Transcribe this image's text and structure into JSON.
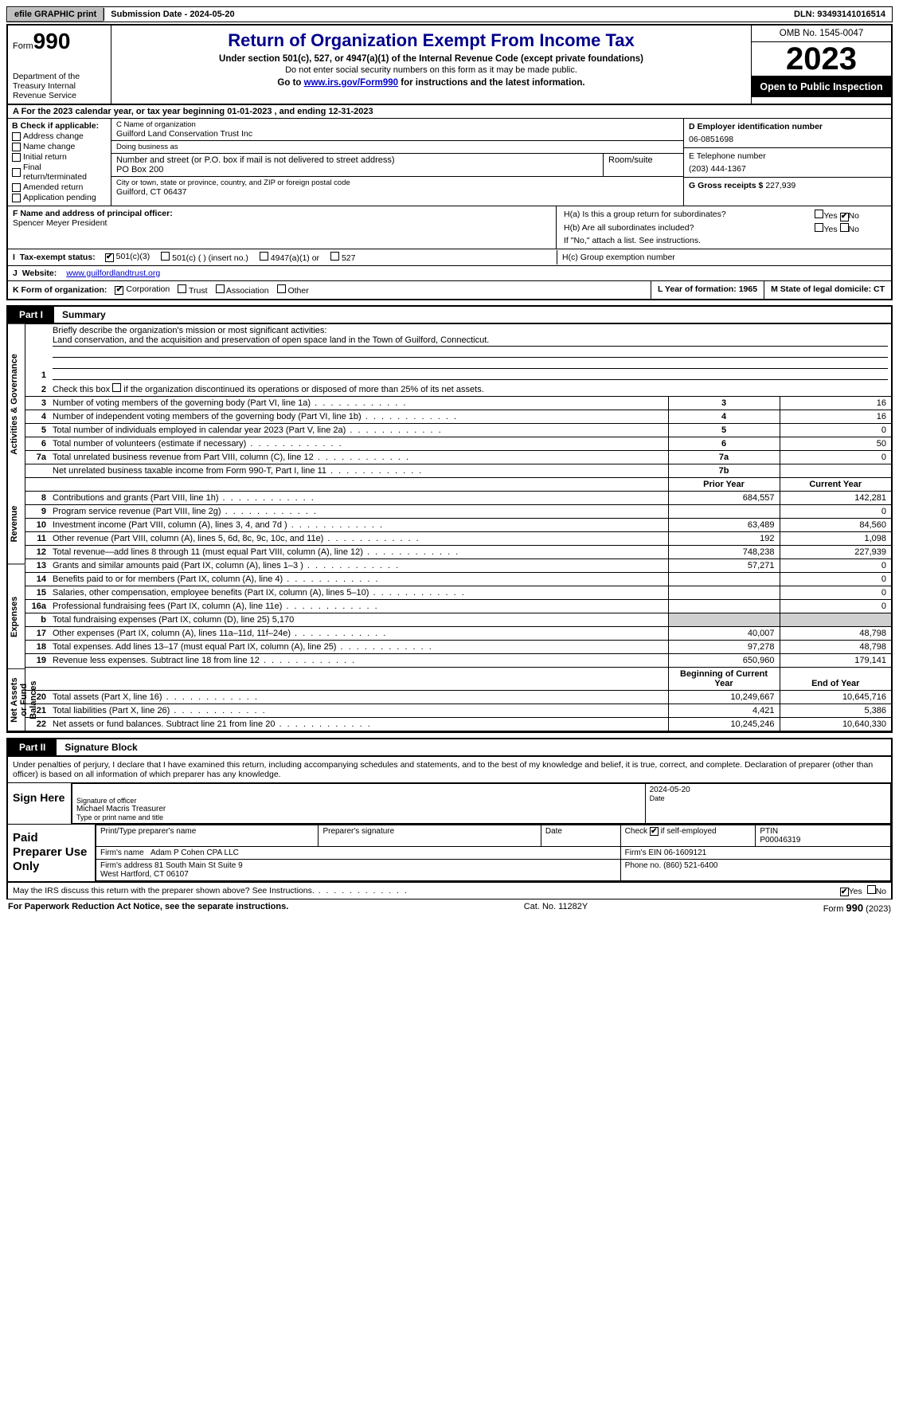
{
  "topbar": {
    "efile_btn": "efile GRAPHIC print",
    "submission": "Submission Date - 2024-05-20",
    "dln": "DLN: 93493141016514"
  },
  "header": {
    "form_word": "Form",
    "form_no": "990",
    "dept": "Department of the Treasury\nInternal Revenue Service",
    "title": "Return of Organization Exempt From Income Tax",
    "sub1": "Under section 501(c), 527, or 4947(a)(1) of the Internal Revenue Code (except private foundations)",
    "sub2": "Do not enter social security numbers on this form as it may be made public.",
    "sub3_pre": "Go to ",
    "sub3_link": "www.irs.gov/Form990",
    "sub3_post": " for instructions and the latest information.",
    "omb": "OMB No. 1545-0047",
    "year": "2023",
    "open": "Open to Public Inspection"
  },
  "aline": "A For the 2023 calendar year, or tax year beginning 01-01-2023    , and ending 12-31-2023",
  "boxB": {
    "label": "B Check if applicable:",
    "items": [
      "Address change",
      "Name change",
      "Initial return",
      "Final return/terminated",
      "Amended return",
      "Application pending"
    ]
  },
  "boxC": {
    "name_lbl": "C Name of organization",
    "name": "Guilford Land Conservation Trust Inc",
    "dba_lbl": "Doing business as",
    "dba": "",
    "street_lbl": "Number and street (or P.O. box if mail is not delivered to street address)",
    "room_lbl": "Room/suite",
    "street": "PO Box 200",
    "city_lbl": "City or town, state or province, country, and ZIP or foreign postal code",
    "city": "Guilford, CT  06437"
  },
  "boxD": {
    "lbl": "D Employer identification number",
    "val": "06-0851698"
  },
  "boxE": {
    "lbl": "E Telephone number",
    "val": "(203) 444-1367"
  },
  "boxG": {
    "lbl": "G Gross receipts $",
    "val": "227,939"
  },
  "boxF": {
    "lbl": "F  Name and address of principal officer:",
    "val": "Spencer Meyer President"
  },
  "boxH": {
    "ha": "H(a)  Is this a group return for subordinates?",
    "hb": "H(b)  Are all subordinates included?",
    "hnote": "If \"No,\" attach a list. See instructions.",
    "hc": "H(c)  Group exemption number"
  },
  "yes": "Yes",
  "no": "No",
  "rowI": {
    "lbl": "I",
    "txt": "Tax-exempt status:",
    "o1": "501(c)(3)",
    "o2": "501(c) (  ) (insert no.)",
    "o3": "4947(a)(1) or",
    "o4": "527"
  },
  "rowJ": {
    "lbl": "J",
    "txt": "Website:",
    "val": "www.guilfordlandtrust.org"
  },
  "rowK": {
    "lbl": "K",
    "txt": "Form of organization:",
    "o1": "Corporation",
    "o2": "Trust",
    "o3": "Association",
    "o4": "Other"
  },
  "rowL": {
    "txt": "L Year of formation: 1965"
  },
  "rowM": {
    "txt": "M State of legal domicile: CT"
  },
  "part1": {
    "tag": "Part I",
    "title": "Summary",
    "vlabels": [
      "Activities & Governance",
      "Revenue",
      "Expenses",
      "Net Assets or Fund Balances"
    ],
    "line1_lbl": "Briefly describe the organization's mission or most significant activities:",
    "mission": "Land conservation, and the acquisition and preservation of open space land in the Town of Guilford, Connecticut.",
    "line2": "Check this box        if the organization discontinued its operations or disposed of more than 25% of its net assets.",
    "rows_ag": [
      {
        "n": "3",
        "d": "Number of voting members of the governing body (Part VI, line 1a)",
        "box": "3",
        "v": "16"
      },
      {
        "n": "4",
        "d": "Number of independent voting members of the governing body (Part VI, line 1b)",
        "box": "4",
        "v": "16"
      },
      {
        "n": "5",
        "d": "Total number of individuals employed in calendar year 2023 (Part V, line 2a)",
        "box": "5",
        "v": "0"
      },
      {
        "n": "6",
        "d": "Total number of volunteers (estimate if necessary)",
        "box": "6",
        "v": "50"
      },
      {
        "n": "7a",
        "d": "Total unrelated business revenue from Part VIII, column (C), line 12",
        "box": "7a",
        "v": "0"
      },
      {
        "n": "",
        "d": "Net unrelated business taxable income from Form 990-T, Part I, line 11",
        "box": "7b",
        "v": ""
      }
    ],
    "hdr_prior": "Prior Year",
    "hdr_curr": "Current Year",
    "rows_rev": [
      {
        "n": "8",
        "d": "Contributions and grants (Part VIII, line 1h)",
        "p": "684,557",
        "c": "142,281"
      },
      {
        "n": "9",
        "d": "Program service revenue (Part VIII, line 2g)",
        "p": "",
        "c": "0"
      },
      {
        "n": "10",
        "d": "Investment income (Part VIII, column (A), lines 3, 4, and 7d )",
        "p": "63,489",
        "c": "84,560"
      },
      {
        "n": "11",
        "d": "Other revenue (Part VIII, column (A), lines 5, 6d, 8c, 9c, 10c, and 11e)",
        "p": "192",
        "c": "1,098"
      },
      {
        "n": "12",
        "d": "Total revenue—add lines 8 through 11 (must equal Part VIII, column (A), line 12)",
        "p": "748,238",
        "c": "227,939"
      }
    ],
    "rows_exp": [
      {
        "n": "13",
        "d": "Grants and similar amounts paid (Part IX, column (A), lines 1–3 )",
        "p": "57,271",
        "c": "0"
      },
      {
        "n": "14",
        "d": "Benefits paid to or for members (Part IX, column (A), line 4)",
        "p": "",
        "c": "0"
      },
      {
        "n": "15",
        "d": "Salaries, other compensation, employee benefits (Part IX, column (A), lines 5–10)",
        "p": "",
        "c": "0"
      },
      {
        "n": "16a",
        "d": "Professional fundraising fees (Part IX, column (A), line 11e)",
        "p": "",
        "c": "0"
      },
      {
        "n": "b",
        "d": "Total fundraising expenses (Part IX, column (D), line 25) 5,170",
        "p": "SHADE",
        "c": "SHADE"
      },
      {
        "n": "17",
        "d": "Other expenses (Part IX, column (A), lines 11a–11d, 11f–24e)",
        "p": "40,007",
        "c": "48,798"
      },
      {
        "n": "18",
        "d": "Total expenses. Add lines 13–17 (must equal Part IX, column (A), line 25)",
        "p": "97,278",
        "c": "48,798"
      },
      {
        "n": "19",
        "d": "Revenue less expenses. Subtract line 18 from line 12",
        "p": "650,960",
        "c": "179,141"
      }
    ],
    "hdr_beg": "Beginning of Current Year",
    "hdr_end": "End of Year",
    "rows_net": [
      {
        "n": "20",
        "d": "Total assets (Part X, line 16)",
        "p": "10,249,667",
        "c": "10,645,716"
      },
      {
        "n": "21",
        "d": "Total liabilities (Part X, line 26)",
        "p": "4,421",
        "c": "5,386"
      },
      {
        "n": "22",
        "d": "Net assets or fund balances. Subtract line 21 from line 20",
        "p": "10,245,246",
        "c": "10,640,330"
      }
    ]
  },
  "part2": {
    "tag": "Part II",
    "title": "Signature Block",
    "decl": "Under penalties of perjury, I declare that I have examined this return, including accompanying schedules and statements, and to the best of my knowledge and belief, it is true, correct, and complete. Declaration of preparer (other than officer) is based on all information of which preparer has any knowledge.",
    "sign_here": "Sign Here",
    "sig_officer_lbl": "Signature of officer",
    "officer": "Michael Macris  Treasurer",
    "type_lbl": "Type or print name and title",
    "date_lbl": "Date",
    "date_val": "2024-05-20",
    "paid": "Paid Preparer Use Only",
    "prep_name_lbl": "Print/Type preparer's name",
    "prep_sig_lbl": "Preparer's signature",
    "check_self": "Check         if self-employed",
    "ptin_lbl": "PTIN",
    "ptin": "P00046319",
    "firm_name_lbl": "Firm's name",
    "firm_name": "Adam P Cohen CPA LLC",
    "firm_ein_lbl": "Firm's EIN",
    "firm_ein": "06-1609121",
    "firm_addr_lbl": "Firm's address",
    "firm_addr": "81 South Main St Suite 9\nWest Hartford, CT  06107",
    "phone_lbl": "Phone no.",
    "phone": "(860) 521-6400"
  },
  "discuss": "May the IRS discuss this return with the preparer shown above? See Instructions.",
  "footer": {
    "left": "For Paperwork Reduction Act Notice, see the separate instructions.",
    "cat": "Cat. No. 11282Y",
    "form": "Form 990 (2023)"
  }
}
